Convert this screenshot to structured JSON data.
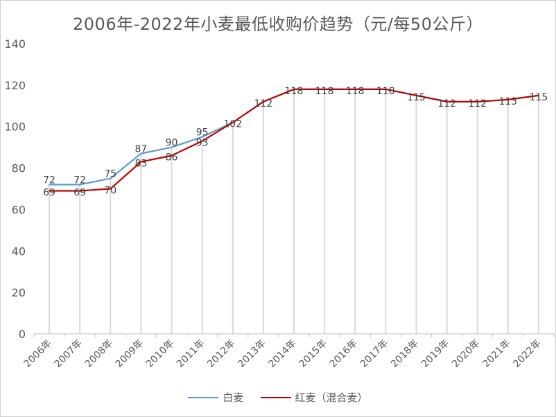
{
  "chart_data": {
    "type": "line",
    "title": "2006年-2022年小麦最低收购价趋势（元/每50公斤）",
    "categories": [
      "2006年",
      "2007年",
      "2008年",
      "2009年",
      "2010年",
      "2011年",
      "2012年",
      "2013年",
      "2014年",
      "2015年",
      "2016年",
      "2017年",
      "2018年",
      "2019年",
      "2020年",
      "2021年",
      "2022年"
    ],
    "series": [
      {
        "name": "白麦",
        "color": "#5B9BD5",
        "values": [
          72,
          72,
          75,
          87,
          90,
          95,
          102,
          112,
          118,
          118,
          118,
          118,
          115,
          112,
          112,
          113,
          115
        ],
        "labels": [
          "72",
          "72",
          "75",
          "87",
          "90",
          "95",
          "",
          "",
          "",
          "",
          "",
          "",
          "",
          "",
          "",
          "",
          ""
        ]
      },
      {
        "name": "红麦（混合麦）",
        "color": "#C00000",
        "values": [
          69,
          69,
          70,
          83,
          86,
          93,
          102,
          112,
          118,
          118,
          118,
          118,
          115,
          112,
          112,
          113,
          115
        ],
        "labels": [
          "69",
          "69",
          "70",
          "83",
          "86",
          "93",
          "102",
          "112",
          "118",
          "118",
          "118",
          "118",
          "115",
          "112",
          "112",
          "113",
          "115"
        ]
      }
    ],
    "ylim": [
      0,
      140
    ],
    "yticks": [
      "0",
      "20",
      "40",
      "60",
      "80",
      "100",
      "120",
      "140"
    ],
    "xlabel": "",
    "ylabel": "",
    "legend_position": "bottom"
  }
}
